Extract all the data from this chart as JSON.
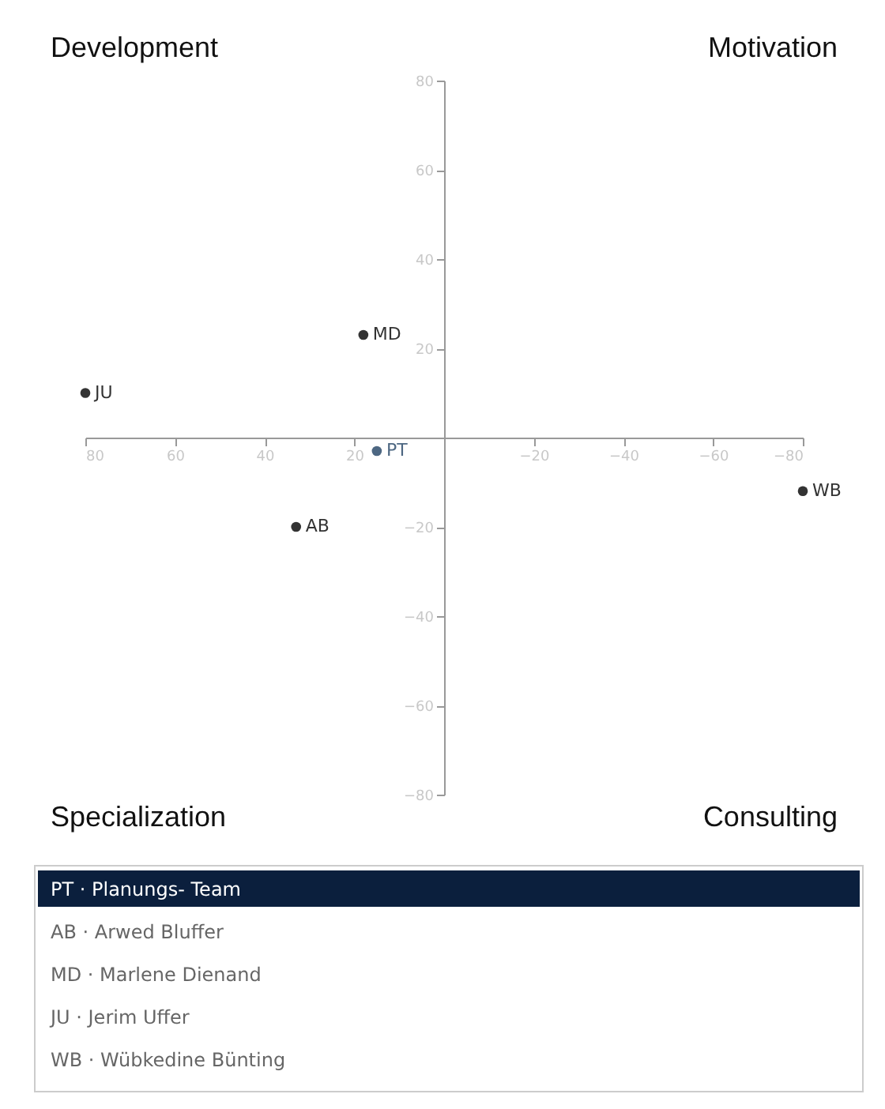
{
  "chart_data": {
    "type": "scatter",
    "series": [
      {
        "name": "PT",
        "color": "#4d6782",
        "x": [
          15
        ],
        "values": [
          -3
        ]
      },
      {
        "name": "AB",
        "color": "#333333",
        "x": [
          33
        ],
        "values": [
          -20
        ]
      },
      {
        "name": "MD",
        "color": "#333333",
        "x": [
          18
        ],
        "values": [
          23
        ]
      },
      {
        "name": "JU",
        "color": "#333333",
        "x": [
          80
        ],
        "values": [
          10
        ]
      },
      {
        "name": "WB",
        "color": "#333333",
        "x": [
          -80
        ],
        "values": [
          -12
        ]
      }
    ],
    "xlim": [
      80,
      -80
    ],
    "xticks": [
      80,
      60,
      40,
      20,
      -20,
      -40,
      -60,
      -80
    ],
    "ylim": [
      -80,
      80
    ],
    "yticks": [
      80,
      60,
      40,
      20,
      -20,
      -40,
      -60,
      -80
    ],
    "grid": false,
    "marker": "circle",
    "annotations": [
      "Development",
      "Motivation",
      "Specialization",
      "Consulting",
      "PT · Planungs- Team",
      "AB · Arwed Bluffer",
      "MD · Marlene Dienand",
      "JU · Jerim Uffer",
      "WB · Wübkedine Bünting"
    ]
  }
}
